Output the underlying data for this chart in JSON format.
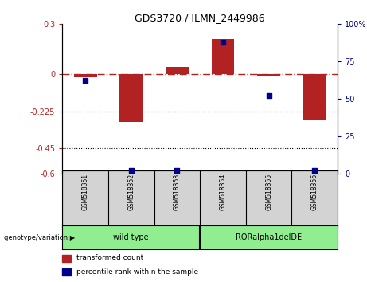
{
  "title": "GDS3720 / ILMN_2449986",
  "samples": [
    "GSM518351",
    "GSM518352",
    "GSM518353",
    "GSM518354",
    "GSM518355",
    "GSM518356"
  ],
  "bar_values": [
    -0.02,
    -0.29,
    0.04,
    0.21,
    -0.01,
    -0.28
  ],
  "percentile_values": [
    62,
    2,
    2,
    88,
    52,
    2
  ],
  "ylim_left": [
    -0.6,
    0.3
  ],
  "ylim_right": [
    0,
    100
  ],
  "yticks_left": [
    0.3,
    0,
    -0.225,
    -0.45,
    -0.6
  ],
  "yticks_right": [
    100,
    75,
    50,
    25,
    0
  ],
  "hlines": [
    -0.225,
    -0.45
  ],
  "bar_color": "#b22222",
  "scatter_color": "#00008B",
  "groups": [
    {
      "label": "wild type",
      "start": 0,
      "end": 3
    },
    {
      "label": "RORalpha1delDE",
      "start": 3,
      "end": 6
    }
  ],
  "group_color": "#90EE90",
  "group_label_prefix": "genotype/variation",
  "legend_red": "transformed count",
  "legend_blue": "percentile rank within the sample",
  "sample_box_color": "#d3d3d3"
}
